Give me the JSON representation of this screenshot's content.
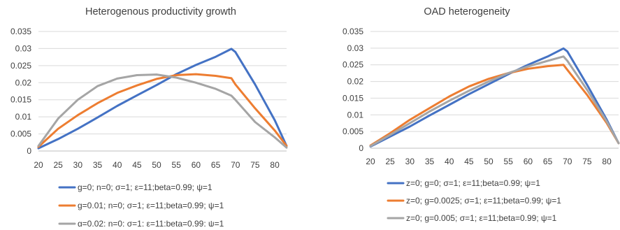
{
  "chart_data": [
    {
      "type": "line",
      "title": "Heterogenous productivity growth",
      "xlabel": "",
      "ylabel": "",
      "ylim": [
        0,
        0.035
      ],
      "yticks": [
        "0",
        "0.005",
        "0.01",
        "0.015",
        "0.02",
        "0.025",
        "0.03",
        "0.035"
      ],
      "xlim": [
        20,
        83
      ],
      "xticks": [
        "20",
        "25",
        "30",
        "35",
        "40",
        "45",
        "50",
        "55",
        "60",
        "65",
        "70",
        "75",
        "80"
      ],
      "grid": true,
      "legend": "bottom",
      "series": [
        {
          "name": "g=0; n=0; σ=1; ε=11;beta=0.99; ψ=1",
          "color": "#4472c4",
          "points": [
            [
              20,
              0.0008
            ],
            [
              25,
              0.0035
            ],
            [
              30,
              0.0065
            ],
            [
              35,
              0.0098
            ],
            [
              40,
              0.0132
            ],
            [
              45,
              0.0163
            ],
            [
              50,
              0.0193
            ],
            [
              55,
              0.0225
            ],
            [
              60,
              0.0252
            ],
            [
              65,
              0.0276
            ],
            [
              69,
              0.0299
            ],
            [
              70,
              0.029
            ],
            [
              75,
              0.0195
            ],
            [
              80,
              0.009
            ],
            [
              83,
              0.0015
            ]
          ]
        },
        {
          "name": "g=0.01; n=0; σ=1; ε=11;beta=0.99; ψ=1",
          "color": "#ed7d31",
          "points": [
            [
              20,
              0.0012
            ],
            [
              25,
              0.0065
            ],
            [
              30,
              0.0105
            ],
            [
              35,
              0.014
            ],
            [
              40,
              0.017
            ],
            [
              45,
              0.0192
            ],
            [
              50,
              0.0211
            ],
            [
              55,
              0.0222
            ],
            [
              60,
              0.0225
            ],
            [
              65,
              0.022
            ],
            [
              69,
              0.0213
            ],
            [
              70,
              0.0195
            ],
            [
              75,
              0.0125
            ],
            [
              80,
              0.006
            ],
            [
              83,
              0.0015
            ]
          ]
        },
        {
          "name": "g=0.02; n=0; σ=1; ε=11;beta=0.99; ψ=1",
          "color": "#a5a5a5",
          "points": [
            [
              20,
              0.0015
            ],
            [
              25,
              0.0095
            ],
            [
              30,
              0.015
            ],
            [
              35,
              0.019
            ],
            [
              40,
              0.0212
            ],
            [
              45,
              0.0222
            ],
            [
              50,
              0.0224
            ],
            [
              55,
              0.0215
            ],
            [
              60,
              0.02
            ],
            [
              65,
              0.0182
            ],
            [
              69,
              0.0162
            ],
            [
              70,
              0.015
            ],
            [
              75,
              0.0085
            ],
            [
              80,
              0.004
            ],
            [
              83,
              0.001
            ]
          ]
        }
      ]
    },
    {
      "type": "line",
      "title": "OAD heterogeneity",
      "xlabel": "",
      "ylabel": "",
      "ylim": [
        0,
        0.035
      ],
      "yticks": [
        "0",
        "0.005",
        "0.01",
        "0.015",
        "0.02",
        "0.025",
        "0.03",
        "0.035"
      ],
      "xlim": [
        20,
        83
      ],
      "xticks": [
        "20",
        "25",
        "30",
        "35",
        "40",
        "45",
        "50",
        "55",
        "60",
        "65",
        "70",
        "75",
        "80"
      ],
      "grid": true,
      "legend": "bottom",
      "series": [
        {
          "name": "z=0; g=0; σ=1; ε=11;beta=0.99; ψ=1",
          "color": "#4472c4",
          "points": [
            [
              20,
              0.0005
            ],
            [
              25,
              0.0035
            ],
            [
              30,
              0.0065
            ],
            [
              35,
              0.0098
            ],
            [
              40,
              0.013
            ],
            [
              45,
              0.0162
            ],
            [
              50,
              0.0192
            ],
            [
              55,
              0.0222
            ],
            [
              60,
              0.025
            ],
            [
              65,
              0.0275
            ],
            [
              69,
              0.0299
            ],
            [
              70,
              0.029
            ],
            [
              75,
              0.019
            ],
            [
              80,
              0.0085
            ],
            [
              83,
              0.0015
            ]
          ]
        },
        {
          "name": "z=0; g=0.0025; σ=1; ε=11;beta=0.99; ψ=1",
          "color": "#ed7d31",
          "points": [
            [
              20,
              0.0008
            ],
            [
              25,
              0.0045
            ],
            [
              30,
              0.0085
            ],
            [
              35,
              0.012
            ],
            [
              40,
              0.0155
            ],
            [
              45,
              0.0185
            ],
            [
              50,
              0.0208
            ],
            [
              55,
              0.0225
            ],
            [
              60,
              0.0238
            ],
            [
              65,
              0.0246
            ],
            [
              69,
              0.025
            ],
            [
              70,
              0.0235
            ],
            [
              75,
              0.016
            ],
            [
              80,
              0.0075
            ],
            [
              83,
              0.0015
            ]
          ]
        },
        {
          "name": "z=0; g=0.005; σ=1; ε=11;beta=0.99; ψ=1",
          "color": "#a5a5a5",
          "points": [
            [
              20,
              0.0006
            ],
            [
              25,
              0.004
            ],
            [
              30,
              0.0075
            ],
            [
              35,
              0.011
            ],
            [
              40,
              0.0142
            ],
            [
              45,
              0.0172
            ],
            [
              50,
              0.02
            ],
            [
              55,
              0.0225
            ],
            [
              60,
              0.0245
            ],
            [
              65,
              0.0262
            ],
            [
              69,
              0.0275
            ],
            [
              70,
              0.0262
            ],
            [
              75,
              0.0175
            ],
            [
              80,
              0.008
            ],
            [
              83,
              0.0015
            ]
          ]
        }
      ]
    }
  ]
}
